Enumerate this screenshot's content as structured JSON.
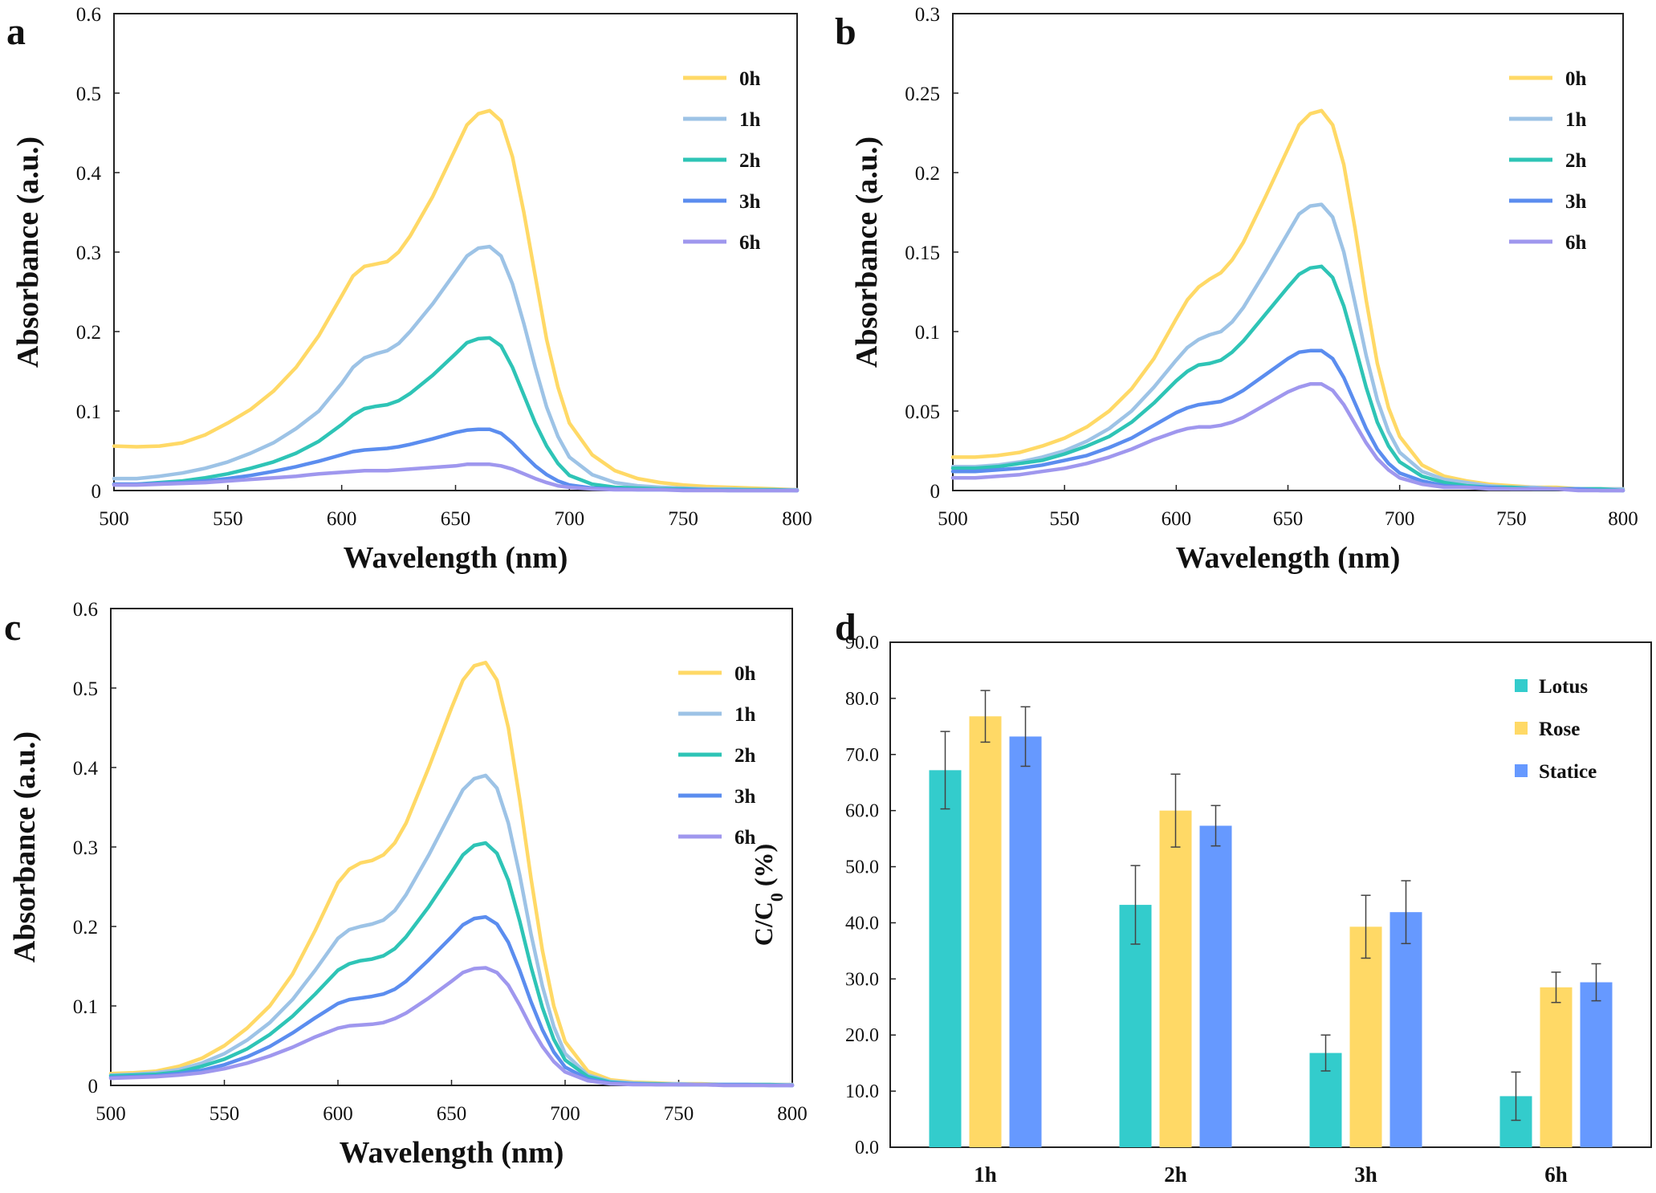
{
  "panels": [
    {
      "letter": "a"
    },
    {
      "letter": "b"
    },
    {
      "letter": "c"
    },
    {
      "letter": "d"
    }
  ],
  "chart_data": [
    {
      "type": "line",
      "panel": "a",
      "xlabel": "Wavelength (nm)",
      "ylabel": "Absorbance (a.u.)",
      "xlim": [
        500,
        800
      ],
      "ylim": [
        0,
        0.6
      ],
      "xticks": [
        "500",
        "550",
        "600",
        "650",
        "700",
        "750",
        "800"
      ],
      "yticks": [
        "0",
        "0.1",
        "0.2",
        "0.3",
        "0.4",
        "0.5",
        "0.6"
      ],
      "x": [
        500,
        510,
        520,
        530,
        540,
        550,
        560,
        570,
        580,
        590,
        600,
        605,
        610,
        615,
        620,
        625,
        630,
        640,
        650,
        655,
        660,
        665,
        670,
        675,
        680,
        685,
        690,
        695,
        700,
        710,
        720,
        730,
        740,
        750,
        760,
        770,
        780,
        790,
        800
      ],
      "series": [
        {
          "name": "0h",
          "color": "#FFD966",
          "values": [
            0.056,
            0.055,
            0.056,
            0.06,
            0.07,
            0.085,
            0.102,
            0.125,
            0.155,
            0.195,
            0.245,
            0.27,
            0.282,
            0.285,
            0.288,
            0.3,
            0.32,
            0.37,
            0.43,
            0.46,
            0.474,
            0.478,
            0.465,
            0.42,
            0.35,
            0.27,
            0.19,
            0.13,
            0.085,
            0.045,
            0.025,
            0.015,
            0.01,
            0.007,
            0.005,
            0.004,
            0.003,
            0.002,
            0.001
          ]
        },
        {
          "name": "1h",
          "color": "#9DC3E6",
          "values": [
            0.015,
            0.015,
            0.018,
            0.022,
            0.028,
            0.036,
            0.047,
            0.06,
            0.078,
            0.1,
            0.135,
            0.155,
            0.167,
            0.172,
            0.176,
            0.185,
            0.2,
            0.235,
            0.275,
            0.295,
            0.305,
            0.307,
            0.295,
            0.26,
            0.21,
            0.155,
            0.105,
            0.068,
            0.042,
            0.02,
            0.01,
            0.006,
            0.004,
            0.003,
            0.002,
            0.002,
            0.001,
            0.001,
            0.001
          ]
        },
        {
          "name": "2h",
          "color": "#2EC4B6",
          "values": [
            0.008,
            0.008,
            0.01,
            0.012,
            0.016,
            0.021,
            0.028,
            0.036,
            0.047,
            0.062,
            0.083,
            0.095,
            0.103,
            0.106,
            0.108,
            0.113,
            0.122,
            0.145,
            0.172,
            0.186,
            0.191,
            0.192,
            0.182,
            0.155,
            0.12,
            0.085,
            0.056,
            0.034,
            0.019,
            0.008,
            0.004,
            0.003,
            0.002,
            0.002,
            0.001,
            0.001,
            0.001,
            0.001,
            0.0
          ]
        },
        {
          "name": "3h",
          "color": "#5B8DEF",
          "values": [
            0.008,
            0.008,
            0.009,
            0.01,
            0.012,
            0.015,
            0.019,
            0.024,
            0.03,
            0.037,
            0.045,
            0.049,
            0.051,
            0.052,
            0.053,
            0.055,
            0.058,
            0.065,
            0.073,
            0.076,
            0.077,
            0.077,
            0.072,
            0.06,
            0.045,
            0.031,
            0.02,
            0.012,
            0.007,
            0.003,
            0.002,
            0.001,
            0.001,
            0.001,
            0.001,
            0.0,
            0.0,
            0.0,
            0.0
          ]
        },
        {
          "name": "6h",
          "color": "#9F97EE",
          "values": [
            0.007,
            0.007,
            0.008,
            0.009,
            0.01,
            0.012,
            0.014,
            0.016,
            0.018,
            0.021,
            0.023,
            0.024,
            0.025,
            0.025,
            0.025,
            0.026,
            0.027,
            0.029,
            0.031,
            0.033,
            0.033,
            0.033,
            0.031,
            0.027,
            0.021,
            0.015,
            0.01,
            0.006,
            0.004,
            0.002,
            0.001,
            0.001,
            0.001,
            0.0,
            0.0,
            0.0,
            0.0,
            0.0,
            0.0
          ]
        }
      ]
    },
    {
      "type": "line",
      "panel": "b",
      "xlabel": "Wavelength (nm)",
      "ylabel": "Absorbance (a.u.)",
      "xlim": [
        500,
        800
      ],
      "ylim": [
        0,
        0.3
      ],
      "xticks": [
        "500",
        "550",
        "600",
        "650",
        "700",
        "750",
        "800"
      ],
      "yticks": [
        "0",
        "0.05",
        "0.1",
        "0.15",
        "0.2",
        "0.25",
        "0.3"
      ],
      "x": [
        500,
        510,
        520,
        530,
        540,
        550,
        560,
        570,
        580,
        590,
        600,
        605,
        610,
        615,
        620,
        625,
        630,
        640,
        650,
        655,
        660,
        665,
        670,
        675,
        680,
        685,
        690,
        695,
        700,
        710,
        720,
        730,
        740,
        750,
        760,
        770,
        780,
        790,
        800
      ],
      "series": [
        {
          "name": "0h",
          "color": "#FFD966",
          "values": [
            0.021,
            0.021,
            0.022,
            0.024,
            0.028,
            0.033,
            0.04,
            0.05,
            0.064,
            0.083,
            0.108,
            0.12,
            0.128,
            0.133,
            0.137,
            0.145,
            0.156,
            0.185,
            0.215,
            0.23,
            0.237,
            0.239,
            0.23,
            0.205,
            0.165,
            0.12,
            0.08,
            0.052,
            0.034,
            0.016,
            0.009,
            0.006,
            0.004,
            0.003,
            0.002,
            0.002,
            0.001,
            0.001,
            0.001
          ]
        },
        {
          "name": "1h",
          "color": "#9DC3E6",
          "values": [
            0.015,
            0.015,
            0.016,
            0.018,
            0.021,
            0.025,
            0.031,
            0.039,
            0.05,
            0.065,
            0.082,
            0.09,
            0.095,
            0.098,
            0.1,
            0.106,
            0.115,
            0.138,
            0.162,
            0.174,
            0.179,
            0.18,
            0.172,
            0.15,
            0.118,
            0.085,
            0.057,
            0.037,
            0.024,
            0.012,
            0.007,
            0.005,
            0.003,
            0.002,
            0.002,
            0.001,
            0.001,
            0.001,
            0.001
          ]
        },
        {
          "name": "2h",
          "color": "#2EC4B6",
          "values": [
            0.014,
            0.014,
            0.015,
            0.017,
            0.019,
            0.023,
            0.028,
            0.034,
            0.043,
            0.055,
            0.069,
            0.075,
            0.079,
            0.08,
            0.082,
            0.087,
            0.094,
            0.111,
            0.128,
            0.136,
            0.14,
            0.141,
            0.134,
            0.116,
            0.091,
            0.065,
            0.043,
            0.028,
            0.018,
            0.009,
            0.005,
            0.003,
            0.002,
            0.002,
            0.001,
            0.001,
            0.001,
            0.001,
            0.0
          ]
        },
        {
          "name": "3h",
          "color": "#5B8DEF",
          "values": [
            0.012,
            0.012,
            0.013,
            0.014,
            0.016,
            0.019,
            0.022,
            0.027,
            0.033,
            0.041,
            0.049,
            0.052,
            0.054,
            0.055,
            0.056,
            0.059,
            0.063,
            0.073,
            0.083,
            0.087,
            0.088,
            0.088,
            0.083,
            0.071,
            0.055,
            0.039,
            0.026,
            0.017,
            0.011,
            0.006,
            0.003,
            0.002,
            0.002,
            0.001,
            0.001,
            0.001,
            0.001,
            0.0,
            0.0
          ]
        },
        {
          "name": "6h",
          "color": "#9F97EE",
          "values": [
            0.008,
            0.008,
            0.009,
            0.01,
            0.012,
            0.014,
            0.017,
            0.021,
            0.026,
            0.032,
            0.037,
            0.039,
            0.04,
            0.04,
            0.041,
            0.043,
            0.046,
            0.054,
            0.062,
            0.065,
            0.067,
            0.067,
            0.063,
            0.054,
            0.042,
            0.03,
            0.02,
            0.013,
            0.008,
            0.004,
            0.002,
            0.002,
            0.001,
            0.001,
            0.001,
            0.001,
            0.0,
            0.0,
            0.0
          ]
        }
      ]
    },
    {
      "type": "line",
      "panel": "c",
      "xlabel": "Wavelength (nm)",
      "ylabel": "Absorbance (a.u.)",
      "xlim": [
        500,
        800
      ],
      "ylim": [
        0,
        0.6
      ],
      "xticks": [
        "500",
        "550",
        "600",
        "650",
        "700",
        "750",
        "800"
      ],
      "yticks": [
        "0",
        "0.1",
        "0.2",
        "0.3",
        "0.4",
        "0.5",
        "0.6"
      ],
      "x": [
        500,
        510,
        520,
        530,
        540,
        550,
        560,
        570,
        580,
        590,
        600,
        605,
        610,
        615,
        620,
        625,
        630,
        640,
        650,
        655,
        660,
        665,
        670,
        675,
        680,
        685,
        690,
        695,
        700,
        710,
        720,
        730,
        740,
        750,
        760,
        770,
        780,
        790,
        800
      ],
      "series": [
        {
          "name": "0h",
          "color": "#FFD966",
          "values": [
            0.015,
            0.016,
            0.018,
            0.024,
            0.034,
            0.05,
            0.072,
            0.1,
            0.14,
            0.195,
            0.255,
            0.272,
            0.28,
            0.283,
            0.29,
            0.305,
            0.33,
            0.4,
            0.475,
            0.51,
            0.528,
            0.532,
            0.51,
            0.45,
            0.36,
            0.26,
            0.17,
            0.1,
            0.055,
            0.018,
            0.007,
            0.004,
            0.003,
            0.002,
            0.002,
            0.001,
            0.001,
            0.001,
            0.001
          ]
        },
        {
          "name": "1h",
          "color": "#9DC3E6",
          "values": [
            0.013,
            0.014,
            0.016,
            0.02,
            0.028,
            0.04,
            0.057,
            0.079,
            0.108,
            0.145,
            0.185,
            0.196,
            0.2,
            0.203,
            0.208,
            0.22,
            0.24,
            0.29,
            0.345,
            0.372,
            0.386,
            0.39,
            0.374,
            0.33,
            0.265,
            0.19,
            0.125,
            0.074,
            0.04,
            0.013,
            0.005,
            0.003,
            0.002,
            0.002,
            0.001,
            0.001,
            0.001,
            0.001,
            0.001
          ]
        },
        {
          "name": "2h",
          "color": "#2EC4B6",
          "values": [
            0.012,
            0.013,
            0.014,
            0.017,
            0.024,
            0.033,
            0.046,
            0.064,
            0.087,
            0.115,
            0.145,
            0.153,
            0.157,
            0.159,
            0.163,
            0.172,
            0.187,
            0.225,
            0.268,
            0.29,
            0.302,
            0.305,
            0.292,
            0.258,
            0.207,
            0.149,
            0.098,
            0.058,
            0.032,
            0.011,
            0.004,
            0.002,
            0.002,
            0.001,
            0.001,
            0.001,
            0.001,
            0.001,
            0.0
          ]
        },
        {
          "name": "3h",
          "color": "#5B8DEF",
          "values": [
            0.01,
            0.011,
            0.012,
            0.015,
            0.019,
            0.026,
            0.036,
            0.049,
            0.066,
            0.085,
            0.103,
            0.108,
            0.11,
            0.112,
            0.115,
            0.121,
            0.131,
            0.158,
            0.187,
            0.202,
            0.21,
            0.212,
            0.203,
            0.18,
            0.145,
            0.105,
            0.07,
            0.042,
            0.023,
            0.008,
            0.003,
            0.002,
            0.001,
            0.001,
            0.001,
            0.001,
            0.001,
            0.0,
            0.0
          ]
        },
        {
          "name": "6h",
          "color": "#9F97EE",
          "values": [
            0.009,
            0.01,
            0.011,
            0.013,
            0.016,
            0.021,
            0.028,
            0.037,
            0.048,
            0.061,
            0.072,
            0.075,
            0.076,
            0.077,
            0.079,
            0.084,
            0.091,
            0.11,
            0.131,
            0.142,
            0.147,
            0.148,
            0.142,
            0.126,
            0.101,
            0.073,
            0.049,
            0.03,
            0.017,
            0.006,
            0.002,
            0.001,
            0.001,
            0.001,
            0.001,
            0.0,
            0.0,
            0.0,
            0.0
          ]
        }
      ]
    },
    {
      "type": "bar",
      "panel": "d",
      "xlabel": "",
      "ylabel_main": "C/C",
      "ylabel_sub": "0",
      "ylabel_tail": " (%)",
      "ylim": [
        0,
        90
      ],
      "yticks": [
        "0.0",
        "10.0",
        "20.0",
        "30.0",
        "40.0",
        "50.0",
        "60.0",
        "70.0",
        "80.0",
        "90.0"
      ],
      "categories": [
        "1h",
        "2h",
        "3h",
        "6h"
      ],
      "series": [
        {
          "name": "Lotus",
          "color": "#33CCCC",
          "values": [
            67.2,
            43.2,
            16.8,
            9.1
          ],
          "errors": [
            6.9,
            7.0,
            3.2,
            4.3
          ]
        },
        {
          "name": "Rose",
          "color": "#FFD966",
          "values": [
            76.8,
            60.0,
            39.3,
            28.5
          ],
          "errors": [
            4.6,
            6.5,
            5.6,
            2.7
          ]
        },
        {
          "name": "Statice",
          "color": "#6699FF",
          "values": [
            73.2,
            57.3,
            41.9,
            29.4
          ],
          "errors": [
            5.3,
            3.6,
            5.6,
            3.3
          ]
        }
      ]
    }
  ]
}
